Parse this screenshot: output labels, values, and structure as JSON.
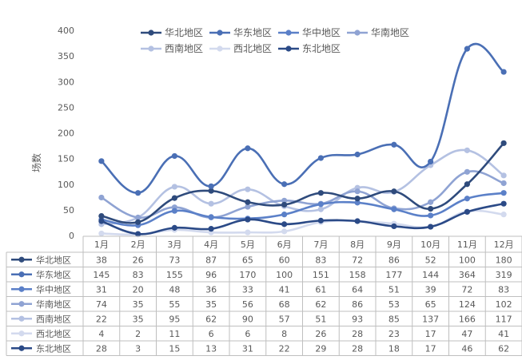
{
  "chart_data": {
    "type": "line",
    "ylabel": "场数",
    "ylim": [
      0,
      400
    ],
    "yticks": [
      0,
      50,
      100,
      150,
      200,
      250,
      300,
      350,
      400
    ],
    "grid": false,
    "legend_position": "top",
    "data_table": true,
    "categories": [
      "1月",
      "2月",
      "3月",
      "4月",
      "5月",
      "6月",
      "7月",
      "8月",
      "9月",
      "10月",
      "11月",
      "12月"
    ],
    "series": [
      {
        "name": "华北地区",
        "color": "#2f4b7c",
        "values": [
          38,
          26,
          73,
          87,
          65,
          60,
          83,
          72,
          86,
          52,
          100,
          180
        ]
      },
      {
        "name": "华东地区",
        "color": "#4a6fb5",
        "values": [
          145,
          83,
          155,
          96,
          170,
          100,
          151,
          158,
          177,
          144,
          364,
          319
        ]
      },
      {
        "name": "华中地区",
        "color": "#5b80c8",
        "values": [
          31,
          20,
          48,
          36,
          33,
          41,
          61,
          64,
          51,
          39,
          72,
          83
        ]
      },
      {
        "name": "华南地区",
        "color": "#8fa3d3",
        "values": [
          74,
          35,
          55,
          35,
          56,
          68,
          62,
          86,
          53,
          65,
          124,
          102
        ]
      },
      {
        "name": "西南地区",
        "color": "#b4c1e2",
        "values": [
          22,
          35,
          95,
          62,
          90,
          57,
          51,
          93,
          85,
          137,
          166,
          117
        ]
      },
      {
        "name": "西北地区",
        "color": "#d3daee",
        "values": [
          4,
          2,
          11,
          6,
          6,
          8,
          26,
          28,
          23,
          17,
          47,
          41
        ]
      },
      {
        "name": "东北地区",
        "color": "#2b4a87",
        "values": [
          28,
          3,
          15,
          13,
          31,
          22,
          29,
          28,
          18,
          17,
          46,
          62
        ]
      }
    ]
  }
}
